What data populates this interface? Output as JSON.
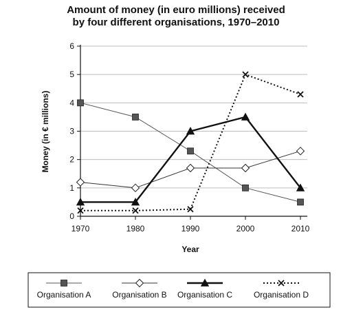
{
  "chart_data": {
    "type": "line",
    "title_line1": "Amount of money (in euro millions) received",
    "title_line2": "by four different organisations, 1970–2010",
    "xlabel": "Year",
    "ylabel": "Money (in € millions)",
    "x": [
      1970,
      1980,
      1990,
      2000,
      2010
    ],
    "x_tick_labels": [
      "1970",
      "1980",
      "1990",
      "2000",
      "2010"
    ],
    "y_ticks": [
      0,
      1,
      2,
      3,
      4,
      5,
      6
    ],
    "y_tick_labels": [
      "0",
      "1",
      "2",
      "3",
      "4",
      "5",
      "6"
    ],
    "ylim": [
      0,
      6
    ],
    "grid": "horizontal",
    "legend_placement": "bottom",
    "series": [
      {
        "name": "Organisation A",
        "values": [
          4.0,
          3.5,
          2.3,
          1.0,
          0.5
        ],
        "marker": "square",
        "line_style": "solid-thin",
        "color": "#555555"
      },
      {
        "name": "Organisation B",
        "values": [
          1.2,
          1.0,
          1.7,
          1.7,
          2.3
        ],
        "marker": "diamond-open",
        "line_style": "solid-thin",
        "color": "#333333"
      },
      {
        "name": "Organisation C",
        "values": [
          0.5,
          0.5,
          3.0,
          3.5,
          1.0
        ],
        "marker": "triangle",
        "line_style": "solid-thick",
        "color": "#111111"
      },
      {
        "name": "Organisation D",
        "values": [
          0.2,
          0.2,
          0.25,
          5.0,
          4.3
        ],
        "marker": "cross",
        "line_style": "dotted",
        "color": "#111111"
      }
    ]
  }
}
